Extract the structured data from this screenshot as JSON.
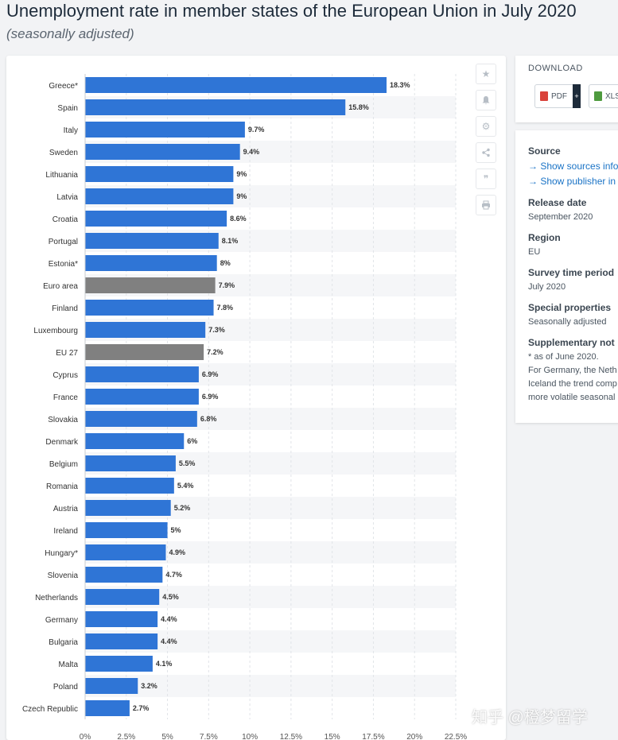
{
  "header": {
    "title": "Unemployment rate in member states of the European Union in July 2020",
    "subtitle": "(seasonally adjusted)"
  },
  "colors": {
    "bar_country": "#2f75d6",
    "bar_aggregate": "#808080",
    "stripe": "#f5f6f8",
    "grid": "#e1e4e8",
    "link": "#1a73c6"
  },
  "toolbar": {
    "icons": [
      "star-icon",
      "bell-icon",
      "gear-icon",
      "share-icon",
      "quote-icon",
      "print-icon"
    ]
  },
  "download": {
    "label": "DOWNLOAD",
    "pdf_label": "PDF",
    "pdf_plus": "+",
    "xls_label": "XLS"
  },
  "info": {
    "source_head": "Source",
    "source_link_1": "→ Show sources info",
    "source_link_2": "→ Show publisher in",
    "release_head": "Release date",
    "release_val": "September 2020",
    "region_head": "Region",
    "region_val": "EU",
    "survey_head": "Survey time period",
    "survey_val": "July 2020",
    "special_head": "Special properties",
    "special_val": "Seasonally adjusted",
    "supp_head": "Supplementary not",
    "supp_line_1": "* as of June 2020.",
    "supp_line_2": "For Germany, the Neth",
    "supp_line_3": "Iceland the trend comp",
    "supp_line_4": "more volatile seasonal"
  },
  "watermark": "知乎 @橙梦留学",
  "chart_data": {
    "type": "bar",
    "orientation": "horizontal",
    "categories": [
      "Greece*",
      "Spain",
      "Italy",
      "Sweden",
      "Lithuania",
      "Latvia",
      "Croatia",
      "Portugal",
      "Estonia*",
      "Euro area",
      "Finland",
      "Luxembourg",
      "EU 27",
      "Cyprus",
      "France",
      "Slovakia",
      "Denmark",
      "Belgium",
      "Romania",
      "Austria",
      "Ireland",
      "Hungary*",
      "Slovenia",
      "Netherlands",
      "Germany",
      "Bulgaria",
      "Malta",
      "Poland",
      "Czech Republic"
    ],
    "values": [
      18.3,
      15.8,
      9.7,
      9.4,
      9,
      9,
      8.6,
      8.1,
      8,
      7.9,
      7.8,
      7.3,
      7.2,
      6.9,
      6.9,
      6.8,
      6,
      5.5,
      5.4,
      5.2,
      5,
      4.9,
      4.7,
      4.5,
      4.4,
      4.4,
      4.1,
      3.2,
      2.7
    ],
    "value_labels": [
      "18.3%",
      "15.8%",
      "9.7%",
      "9.4%",
      "9%",
      "9%",
      "8.6%",
      "8.1%",
      "8%",
      "7.9%",
      "7.8%",
      "7.3%",
      "7.2%",
      "6.9%",
      "6.9%",
      "6.8%",
      "6%",
      "5.5%",
      "5.4%",
      "5.2%",
      "5%",
      "4.9%",
      "4.7%",
      "4.5%",
      "4.4%",
      "4.4%",
      "4.1%",
      "3.2%",
      "2.7%"
    ],
    "aggregates": [
      "Euro area",
      "EU 27"
    ],
    "xlim": [
      0,
      22.5
    ],
    "xticks": [
      0,
      2.5,
      5,
      7.5,
      10,
      12.5,
      15,
      17.5,
      20,
      22.5
    ],
    "xtick_labels": [
      "0%",
      "2.5%",
      "5%",
      "7.5%",
      "10%",
      "12.5%",
      "15%",
      "17.5%",
      "20%",
      "22.5%"
    ],
    "grid": true
  }
}
